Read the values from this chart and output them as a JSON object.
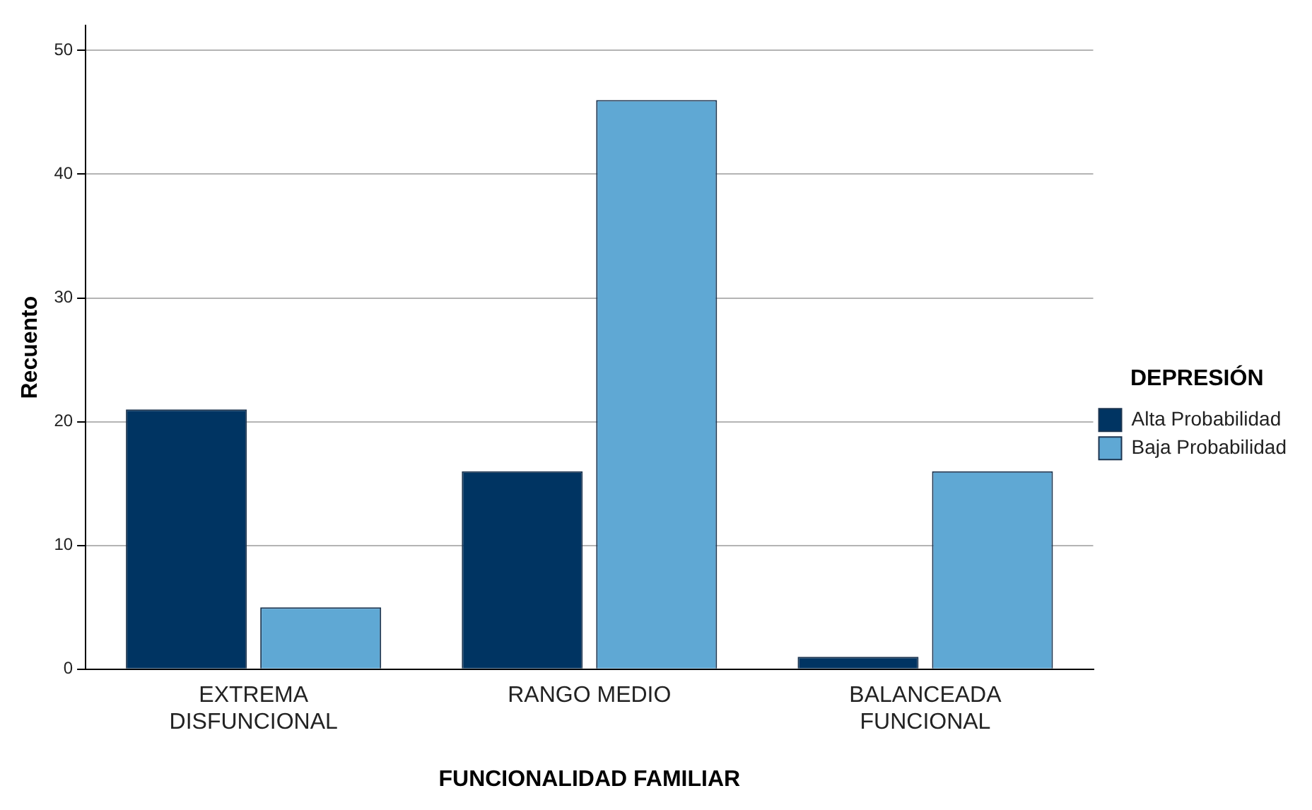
{
  "chart_data": {
    "type": "bar",
    "xlabel": "FUNCIONALIDAD FAMILIAR",
    "ylabel": "Recuento",
    "legend_title": "DEPRESIÓN",
    "categories": [
      "EXTREMA DISFUNCIONAL",
      "RANGO MEDIO",
      "BALANCEADA FUNCIONAL"
    ],
    "series": [
      {
        "name": "Alta Probabilidad",
        "color": "#003462",
        "values": [
          21,
          16,
          1
        ]
      },
      {
        "name": "Baja Probabilidad",
        "color": "#5fa8d4",
        "values": [
          5,
          46,
          16
        ]
      }
    ],
    "ylim": [
      0,
      52
    ],
    "yticks": [
      0,
      10,
      20,
      30,
      40,
      50
    ],
    "grid": "y",
    "legend": "right"
  }
}
